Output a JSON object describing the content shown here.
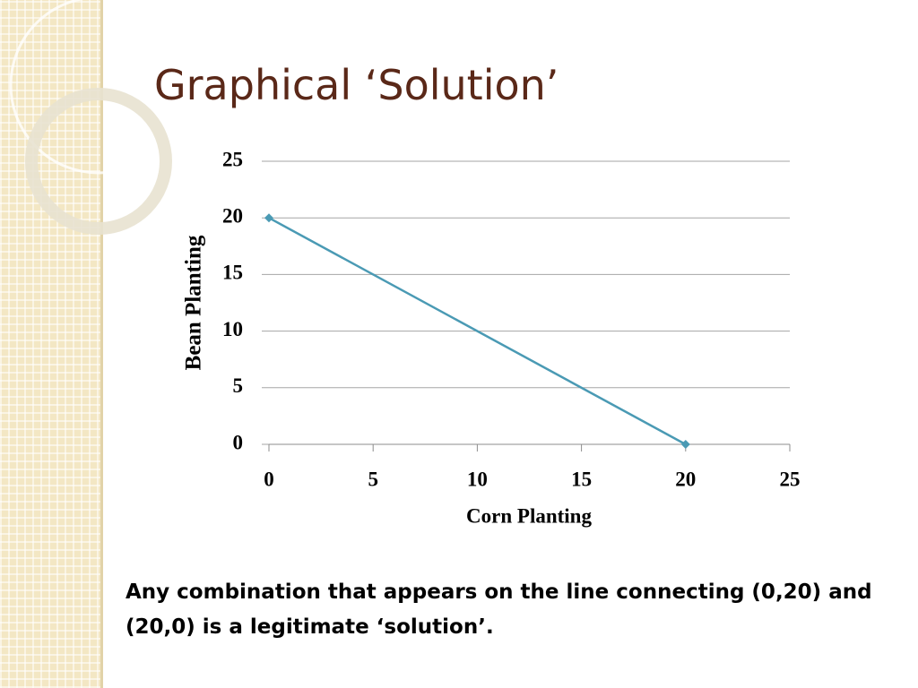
{
  "slide": {
    "title": "Graphical ‘Solution’",
    "caption": "Any combination that appears on the line connecting (0,20) and (20,0) is a legitimate ‘solution’."
  },
  "chart_data": {
    "type": "line",
    "x": [
      0,
      20
    ],
    "values": [
      20,
      0
    ],
    "color": "#4a9ab4",
    "xlabel": "Corn Planting",
    "ylabel": "Bean Planting",
    "xlim": [
      0,
      25
    ],
    "ylim": [
      0,
      25
    ],
    "xticks": [
      0,
      5,
      10,
      15,
      20,
      25
    ],
    "yticks": [
      0,
      5,
      10,
      15,
      20,
      25
    ],
    "grid": true
  }
}
